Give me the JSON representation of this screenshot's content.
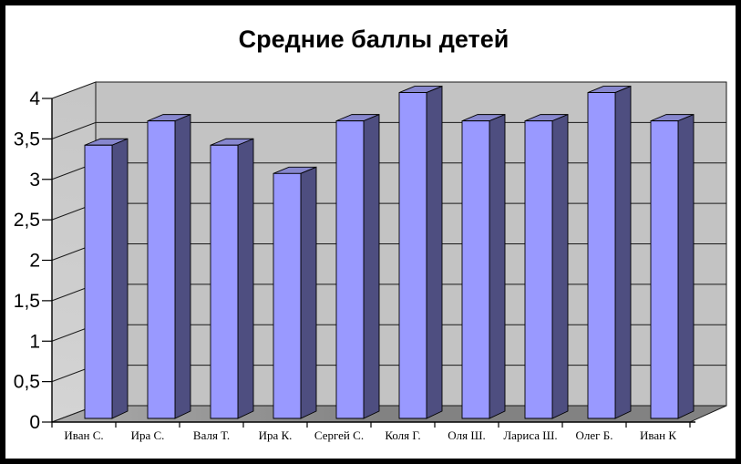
{
  "window": {
    "background": "#ffffff",
    "frame_color": "#000000"
  },
  "chart_data": {
    "type": "bar",
    "variant": "3d-column",
    "title": "Средние баллы детей",
    "categories": [
      "Иван С.",
      "Ира С.",
      "Валя Т.",
      "Ира К.",
      "Сергей С.",
      "Коля Г.",
      "Оля Ш.",
      "Лариса Ш.",
      "Олег Б.",
      "Иван К"
    ],
    "values": [
      3.4,
      3.7,
      3.4,
      3.05,
      3.7,
      4.05,
      3.7,
      3.7,
      4.05,
      3.7
    ],
    "xlabel": "",
    "ylabel": "",
    "ylim": [
      0,
      4
    ],
    "ytick_step": 0.5,
    "ytick_labels": [
      "0",
      "0,5",
      "1",
      "1,5",
      "2",
      "2,5",
      "3",
      "3,5",
      "4"
    ],
    "grid": "horizontal",
    "legend": "none",
    "decimal_separator": ",",
    "colors": {
      "bar_front": "#9999FF",
      "bar_side": "#4E4E80",
      "bar_top": "#8787CE",
      "wall_back": "#C3C3C3",
      "wall_side_light": "#D2D2D2",
      "wall_side_dark": "#C6C6C6",
      "floor_light": "#A6A6A6",
      "floor_dark": "#828282",
      "gridline": "#1a1a1a",
      "axis": "#000000",
      "text": "#000000"
    }
  }
}
